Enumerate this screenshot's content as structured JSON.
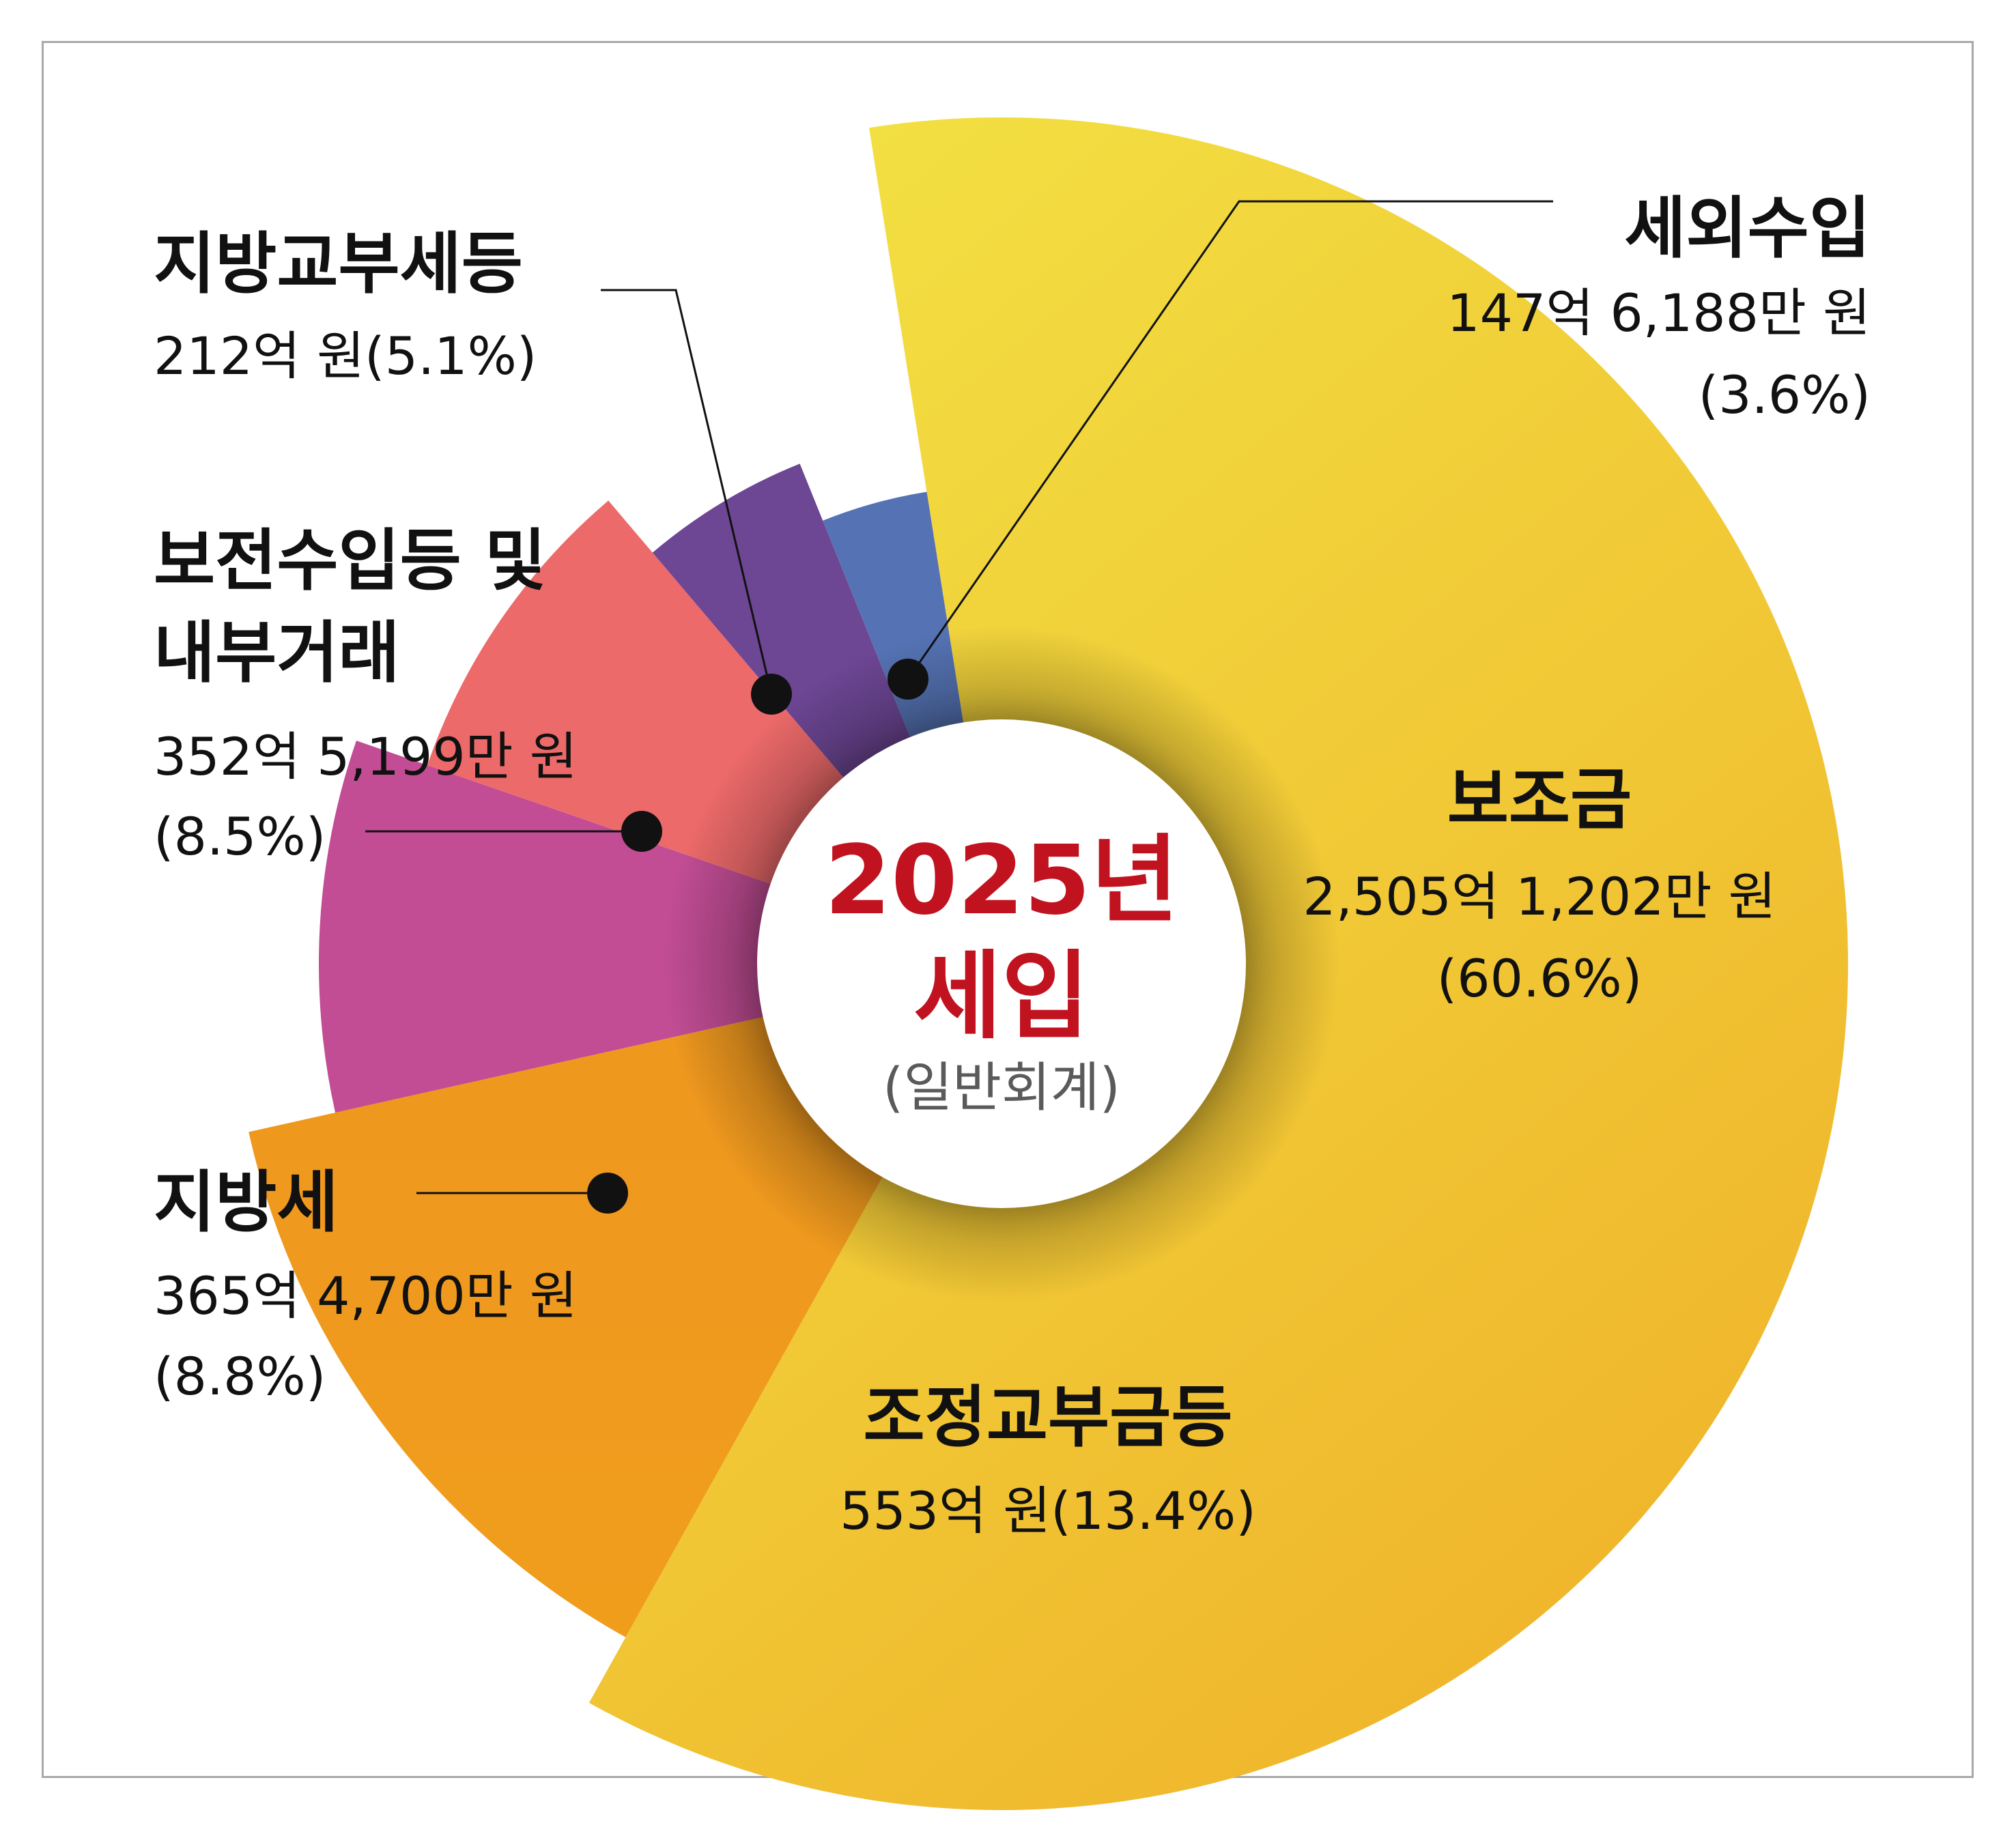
{
  "chart_data": {
    "type": "pie",
    "center": {
      "line1": "2025년",
      "line2": "세입",
      "sub": "(일반회계)"
    },
    "slices": [
      {
        "name": "보조금",
        "value_text": "2,505억 1,202만 원",
        "percent_text": "(60.6%)",
        "percent": 60.6,
        "color": "#f2dc42",
        "color2": "#f0b52c"
      },
      {
        "name": "조정교부금등",
        "value_text": "553억 원(13.4%)",
        "percent": 13.4,
        "color": "#ef9a1e",
        "color2": "#f09c1c"
      },
      {
        "name": "지방세",
        "value_text": "365억 4,700만 원",
        "percent_text": "(8.8%)",
        "percent": 8.8,
        "color": "#c24d95"
      },
      {
        "name_lines": [
          "보전수입등 및",
          "내부거래"
        ],
        "value_text": "352억 5,199만 원",
        "percent_text": "(8.5%)",
        "percent": 8.5,
        "color": "#ed6a6a"
      },
      {
        "name": "지방교부세등",
        "value_text": "212억 원(5.1%)",
        "percent": 5.1,
        "color": "#6d4694"
      },
      {
        "name": "세외수입",
        "value_text": "147억 6,188만 원",
        "percent_text": "(3.6%)",
        "percent": 3.6,
        "color": "#5573b4"
      }
    ]
  }
}
